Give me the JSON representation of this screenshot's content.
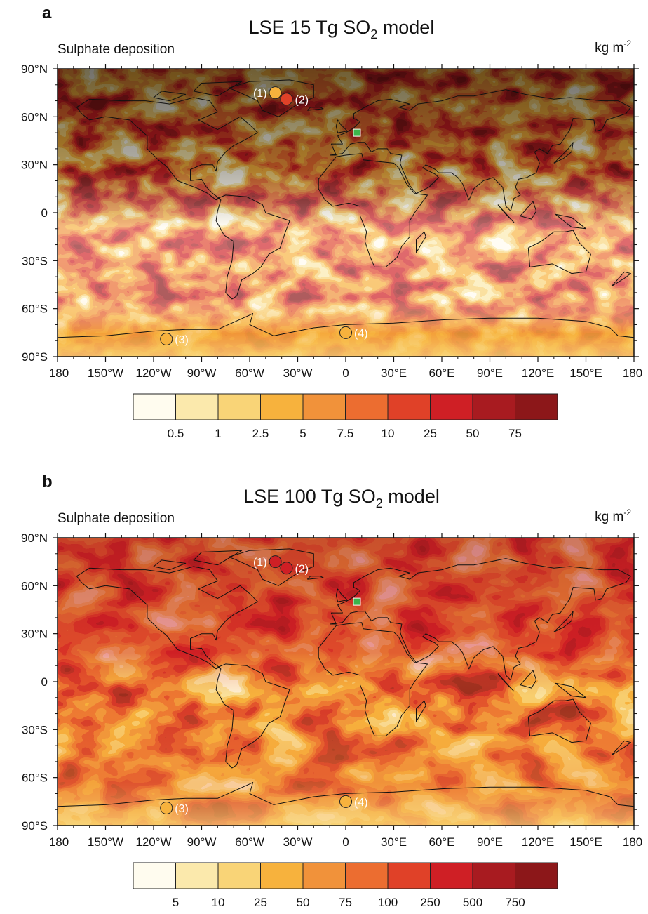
{
  "panels": [
    {
      "label": "a",
      "title_prefix": "LSE 15 Tg SO",
      "title_sub": "2",
      "title_suffix": " model",
      "quantity_label": "Sulphate deposition",
      "units_prefix": "kg m",
      "units_sup": "-2",
      "sites": [
        "(1)",
        "(2)",
        "(3)",
        "(4)"
      ],
      "colorbar_ticks": [
        "0.5",
        "1",
        "2.5",
        "5",
        "7.5",
        "10",
        "25",
        "50",
        "75"
      ]
    },
    {
      "label": "b",
      "title_prefix": "LSE 100 Tg SO",
      "title_sub": "2",
      "title_suffix": " model",
      "quantity_label": "Sulphate deposition",
      "units_prefix": "kg m",
      "units_sup": "-2",
      "sites": [
        "(1)",
        "(2)",
        "(3)",
        "(4)"
      ],
      "colorbar_ticks": [
        "5",
        "10",
        "25",
        "50",
        "75",
        "100",
        "250",
        "500",
        "750"
      ]
    }
  ],
  "axes": {
    "lat_labels": [
      "90°N",
      "60°N",
      "30°N",
      "0",
      "30°S",
      "60°S",
      "90°S"
    ],
    "lon_labels": [
      "180",
      "150°W",
      "120°W",
      "90°W",
      "60°W",
      "30°W",
      "0",
      "30°E",
      "60°E",
      "90°E",
      "120°E",
      "150°E",
      "180"
    ]
  },
  "chart_data": [
    {
      "type": "heatmap",
      "title": "LSE 15 Tg SO2 model",
      "subtitle": "Sulphate deposition",
      "units": "kg m-2",
      "xlim": [
        -180,
        180
      ],
      "ylim": [
        -90,
        90
      ],
      "colorbar_levels": [
        0.5,
        1,
        2.5,
        5,
        7.5,
        10,
        25,
        50,
        75
      ],
      "colors": [
        "#fffcef",
        "#fbe9ac",
        "#f9d477",
        "#f7b23d",
        "#f1923a",
        "#ec6d30",
        "#e04128",
        "#cf1f25",
        "#a81b20",
        "#8c1719"
      ],
      "sites": [
        {
          "label": "(1)",
          "lon": -44,
          "lat": 75
        },
        {
          "label": "(2)",
          "lon": -37,
          "lat": 71
        },
        {
          "label": "(3)",
          "lon": -112,
          "lat": -79
        },
        {
          "label": "(4)",
          "lon": 0,
          "lat": -75
        }
      ],
      "marker": {
        "shape": "square",
        "color": "#3cb44b",
        "lon": 7,
        "lat": 50
      }
    },
    {
      "type": "heatmap",
      "title": "LSE 100 Tg SO2 model",
      "subtitle": "Sulphate deposition",
      "units": "kg m-2",
      "xlim": [
        -180,
        180
      ],
      "ylim": [
        -90,
        90
      ],
      "colorbar_levels": [
        5,
        10,
        25,
        50,
        75,
        100,
        250,
        500,
        750
      ],
      "colors": [
        "#fffcef",
        "#fbe9ac",
        "#f9d477",
        "#f7b23d",
        "#f1923a",
        "#ec6d30",
        "#e04128",
        "#cf1f25",
        "#a81b20",
        "#8c1719"
      ],
      "sites": [
        {
          "label": "(1)",
          "lon": -44,
          "lat": 75
        },
        {
          "label": "(2)",
          "lon": -37,
          "lat": 71
        },
        {
          "label": "(3)",
          "lon": -112,
          "lat": -79
        },
        {
          "label": "(4)",
          "lon": 0,
          "lat": -75
        }
      ],
      "marker": {
        "shape": "square",
        "color": "#3cb44b",
        "lon": 7,
        "lat": 50
      }
    }
  ]
}
